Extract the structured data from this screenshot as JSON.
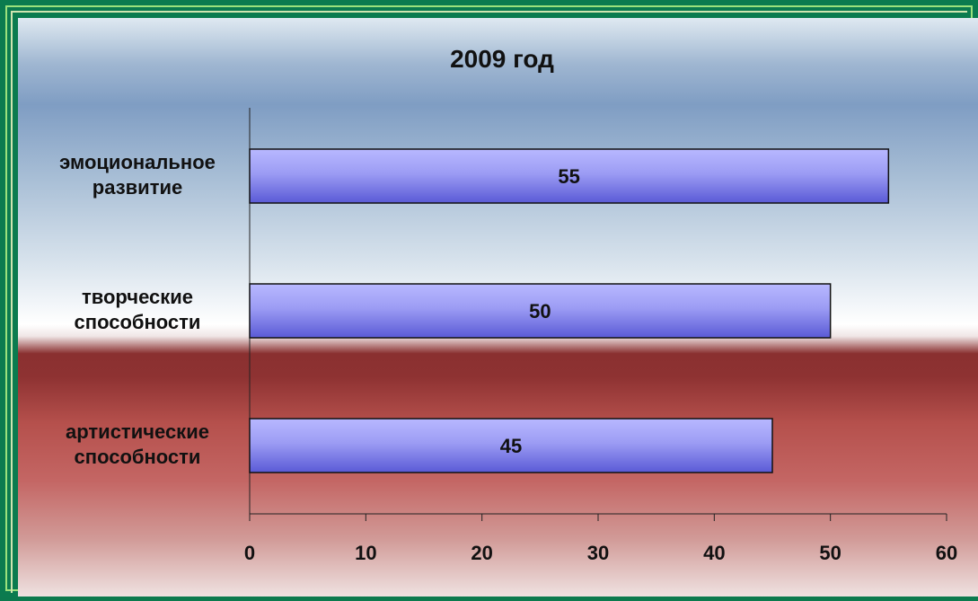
{
  "chart_data": {
    "type": "bar",
    "orientation": "horizontal",
    "title": "2009 год",
    "categories": [
      [
        "эмоциональное",
        "развитие"
      ],
      [
        "творческие",
        "способности"
      ],
      [
        "артистические",
        "способности"
      ]
    ],
    "values": [
      55,
      50,
      45
    ],
    "data_labels": [
      "55",
      "50",
      "45"
    ],
    "xlim": [
      0,
      60
    ],
    "xticks": [
      "0",
      "10",
      "20",
      "30",
      "40",
      "50",
      "60"
    ],
    "grid": false,
    "legend": "none"
  },
  "colors": {
    "bar_light": "#b8b8ff",
    "bar_dark": "#5a5ad6",
    "frame": "#9be27c",
    "slide": "#0b7b4f"
  }
}
